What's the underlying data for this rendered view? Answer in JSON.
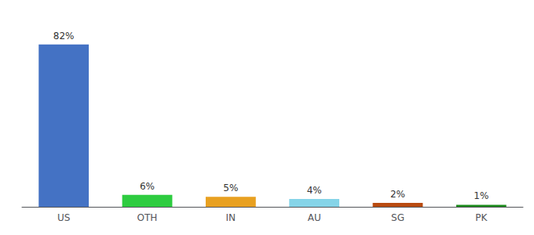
{
  "chart_data": {
    "type": "bar",
    "categories": [
      "US",
      "OTH",
      "IN",
      "AU",
      "SG",
      "PK"
    ],
    "values": [
      82,
      6,
      5,
      4,
      2,
      1
    ],
    "value_labels": [
      "82%",
      "6%",
      "5%",
      "4%",
      "2%",
      "1%"
    ],
    "colors": [
      "#4472c4",
      "#2ecc40",
      "#e8a020",
      "#85d4e8",
      "#b84a10",
      "#1a8a1a"
    ],
    "ylim": [
      0,
      95
    ],
    "grid": false,
    "data_labels": true,
    "tick_labels": "x"
  }
}
